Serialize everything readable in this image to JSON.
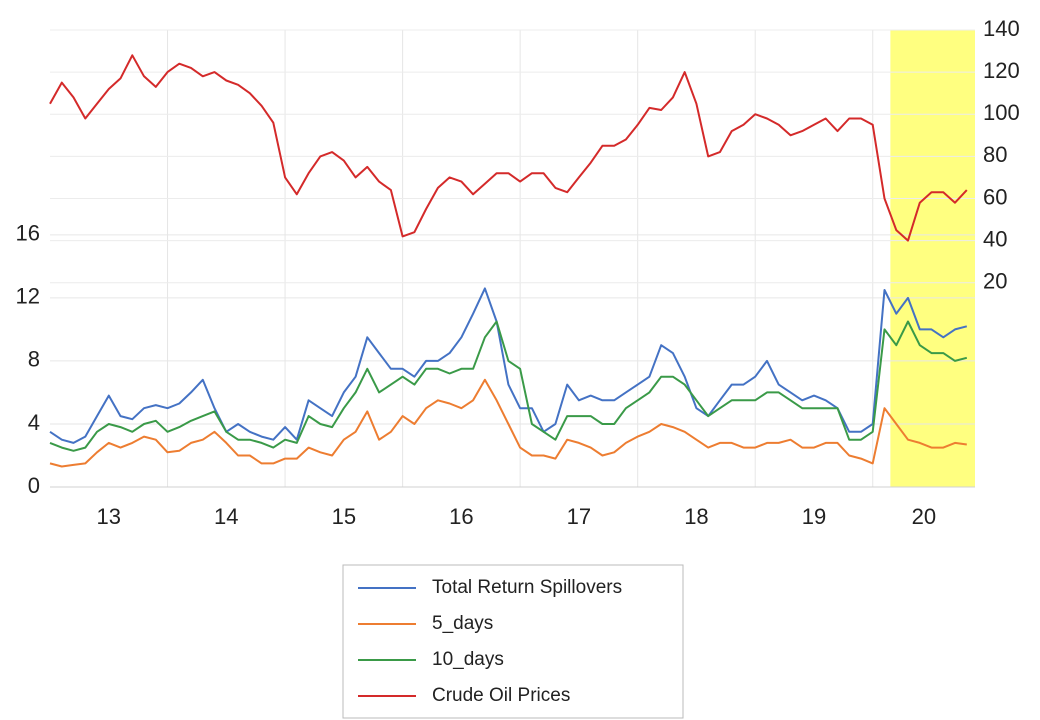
{
  "chart_data": {
    "type": "line",
    "x": [
      13.0,
      13.1,
      13.2,
      13.3,
      13.4,
      13.5,
      13.6,
      13.7,
      13.8,
      13.9,
      14.0,
      14.1,
      14.2,
      14.3,
      14.4,
      14.5,
      14.6,
      14.7,
      14.8,
      14.9,
      15.0,
      15.1,
      15.2,
      15.3,
      15.4,
      15.5,
      15.6,
      15.7,
      15.8,
      15.9,
      16.0,
      16.1,
      16.2,
      16.3,
      16.4,
      16.5,
      16.6,
      16.7,
      16.8,
      16.9,
      17.0,
      17.1,
      17.2,
      17.3,
      17.4,
      17.5,
      17.6,
      17.7,
      17.8,
      17.9,
      18.0,
      18.1,
      18.2,
      18.3,
      18.4,
      18.5,
      18.6,
      18.7,
      18.8,
      18.9,
      19.0,
      19.1,
      19.2,
      19.3,
      19.4,
      19.5,
      19.6,
      19.7,
      19.8,
      19.9,
      20.0,
      20.1,
      20.2,
      20.3,
      20.4,
      20.5,
      20.6,
      20.7,
      20.8
    ],
    "x_categories": [
      "13",
      "14",
      "15",
      "16",
      "17",
      "18",
      "19",
      "20"
    ],
    "xlim": [
      13,
      20.87
    ],
    "xticks": [
      14,
      15,
      16,
      17,
      18,
      19,
      20
    ],
    "ylim": [
      0,
      29
    ],
    "yticks": [
      0,
      4,
      8,
      12,
      16
    ],
    "y2lim": [
      -77,
      140
    ],
    "y2ticks": [
      20,
      40,
      60,
      80,
      100,
      120,
      140
    ],
    "grid": true,
    "legend": "bottom",
    "highlight": {
      "xlim": [
        20.15,
        20.87
      ],
      "color": "#ffff80"
    },
    "series": [
      {
        "name": "Total Return Spillovers",
        "color": "#4472c4",
        "values": [
          3.5,
          3.0,
          2.8,
          3.2,
          4.5,
          5.8,
          4.5,
          4.3,
          5.0,
          5.2,
          5.0,
          5.3,
          6.0,
          6.8,
          5.0,
          3.5,
          4.0,
          3.5,
          3.2,
          3.0,
          3.8,
          3.0,
          5.5,
          5.0,
          4.5,
          6.0,
          7.0,
          9.5,
          8.5,
          7.5,
          7.5,
          7.0,
          8.0,
          8.0,
          8.5,
          9.5,
          11.0,
          12.6,
          10.5,
          6.5,
          5.0,
          5.0,
          3.5,
          4.0,
          6.5,
          5.5,
          5.8,
          5.5,
          5.5,
          6.0,
          6.5,
          7.0,
          9.0,
          8.5,
          7.0,
          5.0,
          4.5,
          5.5,
          6.5,
          6.5,
          7.0,
          8.0,
          6.5,
          6.0,
          5.5,
          5.8,
          5.5,
          5.0,
          3.5,
          3.5,
          4.0,
          12.5,
          11.0,
          12.0,
          10.0,
          10.0,
          9.5,
          10.0,
          10.2
        ]
      },
      {
        "name": "5_days",
        "color": "#ed7d31",
        "values": [
          1.5,
          1.3,
          1.4,
          1.5,
          2.2,
          2.8,
          2.5,
          2.8,
          3.2,
          3.0,
          2.2,
          2.3,
          2.8,
          3.0,
          3.5,
          2.8,
          2.0,
          2.0,
          1.5,
          1.5,
          1.8,
          1.8,
          2.5,
          2.2,
          2.0,
          3.0,
          3.5,
          4.8,
          3.0,
          3.5,
          4.5,
          4.0,
          5.0,
          5.5,
          5.3,
          5.0,
          5.5,
          6.8,
          5.5,
          4.0,
          2.5,
          2.0,
          2.0,
          1.8,
          3.0,
          2.8,
          2.5,
          2.0,
          2.2,
          2.8,
          3.2,
          3.5,
          4.0,
          3.8,
          3.5,
          3.0,
          2.5,
          2.8,
          2.8,
          2.5,
          2.5,
          2.8,
          2.8,
          3.0,
          2.5,
          2.5,
          2.8,
          2.8,
          2.0,
          1.8,
          1.5,
          5.0,
          4.0,
          3.0,
          2.8,
          2.5,
          2.5,
          2.8,
          2.7
        ]
      },
      {
        "name": "10_days",
        "color": "#3a9a48",
        "values": [
          2.8,
          2.5,
          2.3,
          2.5,
          3.5,
          4.0,
          3.8,
          3.5,
          4.0,
          4.2,
          3.5,
          3.8,
          4.2,
          4.5,
          4.8,
          3.5,
          3.0,
          3.0,
          2.8,
          2.5,
          3.0,
          2.8,
          4.5,
          4.0,
          3.8,
          5.0,
          6.0,
          7.5,
          6.0,
          6.5,
          7.0,
          6.5,
          7.5,
          7.5,
          7.2,
          7.5,
          7.5,
          9.5,
          10.5,
          8.0,
          7.5,
          4.0,
          3.5,
          3.0,
          4.5,
          4.5,
          4.5,
          4.0,
          4.0,
          5.0,
          5.5,
          6.0,
          7.0,
          7.0,
          6.5,
          5.5,
          4.5,
          5.0,
          5.5,
          5.5,
          5.5,
          6.0,
          6.0,
          5.5,
          5.0,
          5.0,
          5.0,
          5.0,
          3.0,
          3.0,
          3.5,
          10.0,
          9.0,
          10.5,
          9.0,
          8.5,
          8.5,
          8.0,
          8.2
        ]
      },
      {
        "name": "Crude Oil Prices",
        "color": "#d42a2a",
        "axis": "y2",
        "values": [
          105,
          115,
          108,
          98,
          105,
          112,
          117,
          128,
          118,
          113,
          120,
          124,
          122,
          118,
          120,
          116,
          114,
          110,
          104,
          96,
          70,
          62,
          72,
          80,
          82,
          78,
          70,
          75,
          68,
          64,
          42,
          44,
          55,
          65,
          70,
          68,
          62,
          67,
          72,
          72,
          68,
          72,
          72,
          65,
          63,
          70,
          77,
          85,
          85,
          88,
          95,
          103,
          102,
          108,
          120,
          105,
          80,
          82,
          92,
          95,
          100,
          98,
          95,
          90,
          92,
          95,
          98,
          92,
          98,
          98,
          95,
          60,
          45,
          40,
          58,
          63,
          63,
          58,
          64
        ]
      }
    ]
  }
}
